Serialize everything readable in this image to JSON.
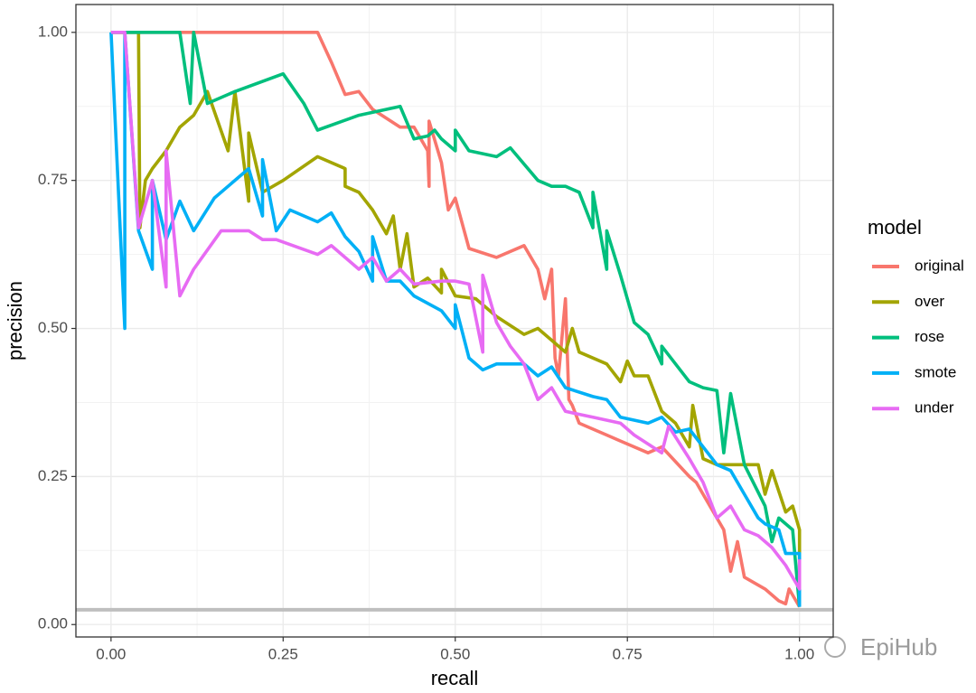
{
  "chart_data": {
    "type": "line",
    "x_label": "recall",
    "y_label": "precision",
    "legend_title": "model",
    "legend_position": "right",
    "grid": true,
    "watermark": "EpiHub",
    "xlim": [
      -0.051,
      1.049
    ],
    "ylim": [
      -0.021,
      1.047
    ],
    "xticks": [
      {
        "value": 0,
        "label": "0.00"
      },
      {
        "value": 0.25,
        "label": "0.25"
      },
      {
        "value": 0.5,
        "label": "0.50"
      },
      {
        "value": 0.75,
        "label": "0.75"
      },
      {
        "value": 1,
        "label": "1.00"
      }
    ],
    "yticks": [
      {
        "value": 0,
        "label": "0.00"
      },
      {
        "value": 0.25,
        "label": "0.25"
      },
      {
        "value": 0.5,
        "label": "0.50"
      },
      {
        "value": 0.75,
        "label": "0.75"
      },
      {
        "value": 1,
        "label": "1.00"
      }
    ],
    "hline": 0.025,
    "hline_color": "#bfbfbf",
    "series": [
      {
        "name": "original",
        "color": "#F8766D",
        "x": [
          0,
          0.3,
          0.32,
          0.34,
          0.36,
          0.38,
          0.42,
          0.44,
          0.46,
          0.462,
          0.462,
          0.48,
          0.49,
          0.5,
          0.52,
          0.56,
          0.6,
          0.62,
          0.63,
          0.64,
          0.645,
          0.65,
          0.66,
          0.665,
          0.67,
          0.68,
          0.72,
          0.74,
          0.78,
          0.8,
          0.84,
          0.85,
          0.87,
          0.89,
          0.9,
          0.91,
          0.92,
          0.95,
          0.97,
          0.98,
          0.985,
          1.0
        ],
        "values": [
          1,
          1,
          0.95,
          0.895,
          0.9,
          0.87,
          0.84,
          0.84,
          0.8,
          0.74,
          0.85,
          0.78,
          0.7,
          0.72,
          0.635,
          0.62,
          0.64,
          0.6,
          0.55,
          0.6,
          0.45,
          0.42,
          0.55,
          0.38,
          0.37,
          0.34,
          0.32,
          0.31,
          0.29,
          0.3,
          0.25,
          0.24,
          0.2,
          0.16,
          0.09,
          0.14,
          0.08,
          0.06,
          0.04,
          0.035,
          0.06,
          0.03
        ]
      },
      {
        "name": "over",
        "color": "#A3A500",
        "x": [
          0,
          0.04,
          0.042,
          0.05,
          0.06,
          0.08,
          0.1,
          0.12,
          0.14,
          0.17,
          0.18,
          0.2,
          0.2,
          0.22,
          0.25,
          0.3,
          0.34,
          0.34,
          0.36,
          0.38,
          0.4,
          0.41,
          0.42,
          0.43,
          0.44,
          0.46,
          0.48,
          0.48,
          0.5,
          0.53,
          0.56,
          0.6,
          0.62,
          0.66,
          0.67,
          0.68,
          0.72,
          0.74,
          0.75,
          0.76,
          0.78,
          0.8,
          0.82,
          0.84,
          0.845,
          0.86,
          0.88,
          0.94,
          0.95,
          0.96,
          0.98,
          0.99,
          1.0,
          1.0
        ],
        "values": [
          1,
          1,
          0.67,
          0.75,
          0.77,
          0.8,
          0.84,
          0.86,
          0.9,
          0.8,
          0.9,
          0.715,
          0.83,
          0.73,
          0.75,
          0.79,
          0.77,
          0.74,
          0.73,
          0.7,
          0.66,
          0.69,
          0.6,
          0.66,
          0.57,
          0.585,
          0.56,
          0.6,
          0.555,
          0.55,
          0.52,
          0.49,
          0.5,
          0.46,
          0.5,
          0.46,
          0.44,
          0.41,
          0.445,
          0.42,
          0.42,
          0.36,
          0.34,
          0.3,
          0.37,
          0.28,
          0.27,
          0.27,
          0.22,
          0.26,
          0.19,
          0.2,
          0.16,
          0.09
        ]
      },
      {
        "name": "rose",
        "color": "#00BF7D",
        "x": [
          0,
          0.1,
          0.115,
          0.12,
          0.14,
          0.18,
          0.25,
          0.28,
          0.3,
          0.36,
          0.42,
          0.44,
          0.46,
          0.47,
          0.48,
          0.5,
          0.5,
          0.52,
          0.56,
          0.58,
          0.62,
          0.64,
          0.66,
          0.68,
          0.7,
          0.7,
          0.72,
          0.72,
          0.74,
          0.75,
          0.76,
          0.78,
          0.8,
          0.8,
          0.84,
          0.86,
          0.88,
          0.89,
          0.9,
          0.92,
          0.95,
          0.96,
          0.97,
          0.99,
          1.0
        ],
        "values": [
          1,
          1,
          0.88,
          1,
          0.88,
          0.9,
          0.93,
          0.88,
          0.835,
          0.86,
          0.875,
          0.82,
          0.825,
          0.835,
          0.82,
          0.8,
          0.835,
          0.8,
          0.79,
          0.805,
          0.75,
          0.74,
          0.74,
          0.73,
          0.67,
          0.73,
          0.6,
          0.665,
          0.59,
          0.55,
          0.51,
          0.49,
          0.44,
          0.47,
          0.41,
          0.4,
          0.395,
          0.29,
          0.39,
          0.27,
          0.2,
          0.14,
          0.18,
          0.16,
          0.03
        ]
      },
      {
        "name": "smote",
        "color": "#00B0F6",
        "x": [
          0,
          0.02,
          0.02,
          0.04,
          0.06,
          0.06,
          0.08,
          0.1,
          0.12,
          0.15,
          0.2,
          0.22,
          0.22,
          0.24,
          0.26,
          0.3,
          0.32,
          0.34,
          0.36,
          0.38,
          0.38,
          0.4,
          0.42,
          0.44,
          0.48,
          0.5,
          0.5,
          0.52,
          0.54,
          0.56,
          0.6,
          0.62,
          0.64,
          0.66,
          0.7,
          0.72,
          0.74,
          0.78,
          0.8,
          0.82,
          0.84,
          0.86,
          0.88,
          0.9,
          0.92,
          0.94,
          0.95,
          0.97,
          0.98,
          1.0,
          1.0
        ],
        "values": [
          1,
          0.5,
          1,
          0.665,
          0.6,
          0.75,
          0.65,
          0.715,
          0.665,
          0.72,
          0.77,
          0.69,
          0.785,
          0.665,
          0.7,
          0.68,
          0.695,
          0.655,
          0.63,
          0.58,
          0.655,
          0.58,
          0.58,
          0.555,
          0.53,
          0.5,
          0.54,
          0.45,
          0.43,
          0.44,
          0.44,
          0.42,
          0.435,
          0.4,
          0.385,
          0.38,
          0.35,
          0.34,
          0.35,
          0.325,
          0.33,
          0.3,
          0.27,
          0.26,
          0.22,
          0.18,
          0.17,
          0.16,
          0.12,
          0.12,
          0.03
        ]
      },
      {
        "name": "under",
        "color": "#E76BF3",
        "x": [
          0,
          0.02,
          0.04,
          0.06,
          0.08,
          0.08,
          0.1,
          0.12,
          0.16,
          0.2,
          0.22,
          0.24,
          0.3,
          0.32,
          0.36,
          0.38,
          0.4,
          0.42,
          0.44,
          0.48,
          0.5,
          0.52,
          0.54,
          0.54,
          0.56,
          0.58,
          0.6,
          0.62,
          0.64,
          0.66,
          0.7,
          0.74,
          0.76,
          0.8,
          0.81,
          0.84,
          0.86,
          0.88,
          0.9,
          0.92,
          0.94,
          0.96,
          0.98,
          1.0,
          1.0
        ],
        "values": [
          1,
          1,
          0.67,
          0.75,
          0.57,
          0.8,
          0.555,
          0.6,
          0.665,
          0.665,
          0.65,
          0.65,
          0.625,
          0.64,
          0.6,
          0.62,
          0.58,
          0.6,
          0.575,
          0.58,
          0.58,
          0.575,
          0.46,
          0.59,
          0.51,
          0.47,
          0.44,
          0.38,
          0.4,
          0.36,
          0.35,
          0.34,
          0.32,
          0.29,
          0.335,
          0.28,
          0.24,
          0.18,
          0.2,
          0.16,
          0.15,
          0.13,
          0.1,
          0.06,
          0.11
        ]
      }
    ]
  }
}
